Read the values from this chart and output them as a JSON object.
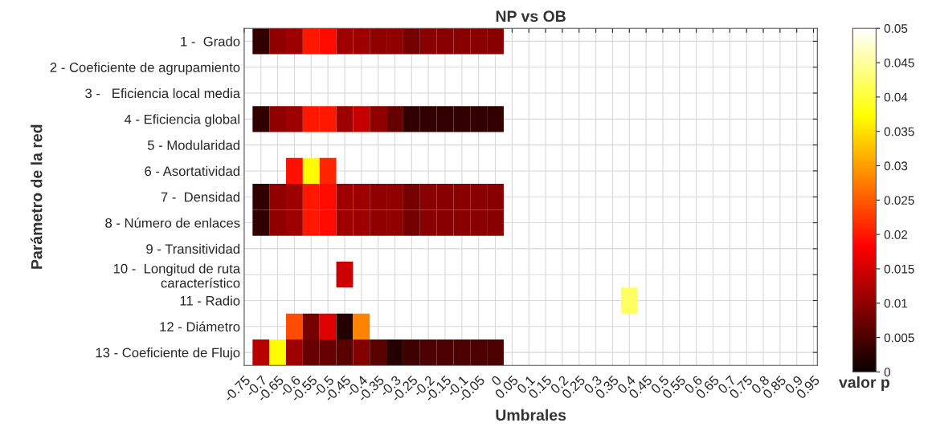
{
  "chart_data": {
    "type": "heatmap",
    "title": "NP vs OB",
    "xlabel": "Umbrales",
    "ylabel": "Parámetro de la red",
    "clabel": "valor p",
    "categories": [
      "-0.75",
      "-0.7",
      "-0.65",
      "-0.6",
      "-0.55",
      "-0.5",
      "-0.45",
      "-0.4",
      "-0.35",
      "-0.3",
      "-0.25",
      "-0.2",
      "-0.15",
      "-0.1",
      "-0.05",
      "0",
      "0.05",
      "0.1",
      "0.15",
      "0.2",
      "0.25",
      "0.3",
      "0.35",
      "0.4",
      "0.45",
      "0.5",
      "0.55",
      "0.6",
      "0.65",
      "0.7",
      "0.75",
      "0.8",
      "0.85",
      "0.9",
      "0.95"
    ],
    "y_categories": [
      "1 -  Grado",
      "2 - Coeficiente de agrupamiento",
      "3 -   Eficiencia local media",
      "4 - Eficiencia global",
      "5 - Modularidad",
      "6 - Asortatividad",
      "7 -  Densidad",
      "8 - Número de enlaces",
      "9 - Transitividad",
      "10 -  Longitud de ruta\ncaracterístico",
      "11 - Radio",
      "12 - Diámetro",
      "13 - Coeficiente de Flujo"
    ],
    "cells": [
      [
        null,
        0.003,
        0.01,
        0.011,
        0.02,
        0.019,
        0.011,
        0.011,
        0.01,
        0.01,
        0.008,
        0.0095,
        0.0095,
        0.0095,
        0.0095,
        0.0095,
        null,
        null,
        null,
        null,
        null,
        null,
        null,
        null,
        null,
        null,
        null,
        null,
        null,
        null,
        null,
        null,
        null,
        null,
        null
      ],
      [
        null,
        null,
        null,
        null,
        null,
        null,
        null,
        null,
        null,
        null,
        null,
        null,
        null,
        null,
        null,
        null,
        null,
        null,
        null,
        null,
        null,
        null,
        null,
        null,
        null,
        null,
        null,
        null,
        null,
        null,
        null,
        null,
        null,
        null,
        null
      ],
      [
        null,
        null,
        null,
        null,
        null,
        null,
        null,
        null,
        null,
        null,
        null,
        null,
        null,
        null,
        null,
        null,
        null,
        null,
        null,
        null,
        null,
        null,
        null,
        null,
        null,
        null,
        null,
        null,
        null,
        null,
        null,
        null,
        null,
        null,
        null
      ],
      [
        null,
        0.003,
        0.01,
        0.011,
        0.02,
        0.02,
        0.011,
        0.014,
        0.01,
        0.007,
        0.003,
        0.003,
        0.003,
        0.003,
        0.003,
        0.003,
        null,
        null,
        null,
        null,
        null,
        null,
        null,
        null,
        null,
        null,
        null,
        null,
        null,
        null,
        null,
        null,
        null,
        null,
        null
      ],
      [
        null,
        null,
        null,
        null,
        null,
        null,
        null,
        null,
        null,
        null,
        null,
        null,
        null,
        null,
        null,
        null,
        null,
        null,
        null,
        null,
        null,
        null,
        null,
        null,
        null,
        null,
        null,
        null,
        null,
        null,
        null,
        null,
        null,
        null,
        null
      ],
      [
        null,
        null,
        null,
        0.0195,
        0.037,
        0.021,
        null,
        null,
        null,
        null,
        null,
        null,
        null,
        null,
        null,
        null,
        null,
        null,
        null,
        null,
        null,
        null,
        null,
        null,
        null,
        null,
        null,
        null,
        null,
        null,
        null,
        null,
        null,
        null,
        null
      ],
      [
        null,
        0.003,
        0.01,
        0.011,
        0.02,
        0.019,
        0.011,
        0.011,
        0.01,
        0.01,
        0.008,
        0.0095,
        0.0095,
        0.0095,
        0.0095,
        0.0095,
        null,
        null,
        null,
        null,
        null,
        null,
        null,
        null,
        null,
        null,
        null,
        null,
        null,
        null,
        null,
        null,
        null,
        null,
        null
      ],
      [
        null,
        0.003,
        0.01,
        0.011,
        0.02,
        0.019,
        0.011,
        0.011,
        0.01,
        0.01,
        0.008,
        0.0095,
        0.0095,
        0.0095,
        0.0095,
        0.0095,
        null,
        null,
        null,
        null,
        null,
        null,
        null,
        null,
        null,
        null,
        null,
        null,
        null,
        null,
        null,
        null,
        null,
        null,
        null
      ],
      [
        null,
        null,
        null,
        null,
        null,
        null,
        null,
        null,
        null,
        null,
        null,
        null,
        null,
        null,
        null,
        null,
        null,
        null,
        null,
        null,
        null,
        null,
        null,
        null,
        null,
        null,
        null,
        null,
        null,
        null,
        null,
        null,
        null,
        null,
        null
      ],
      [
        null,
        null,
        null,
        null,
        null,
        null,
        0.0145,
        null,
        null,
        null,
        null,
        null,
        null,
        null,
        null,
        null,
        null,
        null,
        null,
        null,
        null,
        null,
        null,
        null,
        null,
        null,
        null,
        null,
        null,
        null,
        null,
        null,
        null,
        null,
        null
      ],
      [
        null,
        null,
        null,
        null,
        null,
        null,
        null,
        null,
        null,
        null,
        null,
        null,
        null,
        null,
        null,
        null,
        null,
        null,
        null,
        null,
        null,
        null,
        null,
        0.042,
        null,
        null,
        null,
        null,
        null,
        null,
        null,
        null,
        null,
        null,
        null
      ],
      [
        null,
        null,
        null,
        0.024,
        0.008,
        0.016,
        0.002,
        0.028,
        null,
        null,
        null,
        null,
        null,
        null,
        null,
        null,
        null,
        null,
        null,
        null,
        null,
        null,
        null,
        null,
        null,
        null,
        null,
        null,
        null,
        null,
        null,
        null,
        null,
        null,
        null
      ],
      [
        null,
        0.013,
        0.037,
        0.011,
        0.007,
        0.007,
        0.006,
        0.009,
        0.006,
        0.002,
        0.004,
        0.005,
        0.005,
        0.005,
        0.005,
        0.005,
        null,
        null,
        null,
        null,
        null,
        null,
        null,
        null,
        null,
        null,
        null,
        null,
        null,
        null,
        null,
        null,
        null,
        null,
        null
      ]
    ],
    "clim": [
      0,
      0.05
    ],
    "cticks": [
      0,
      0.005,
      0.01,
      0.015,
      0.02,
      0.025,
      0.03,
      0.035,
      0.04,
      0.045,
      0.05
    ],
    "grid": true
  }
}
